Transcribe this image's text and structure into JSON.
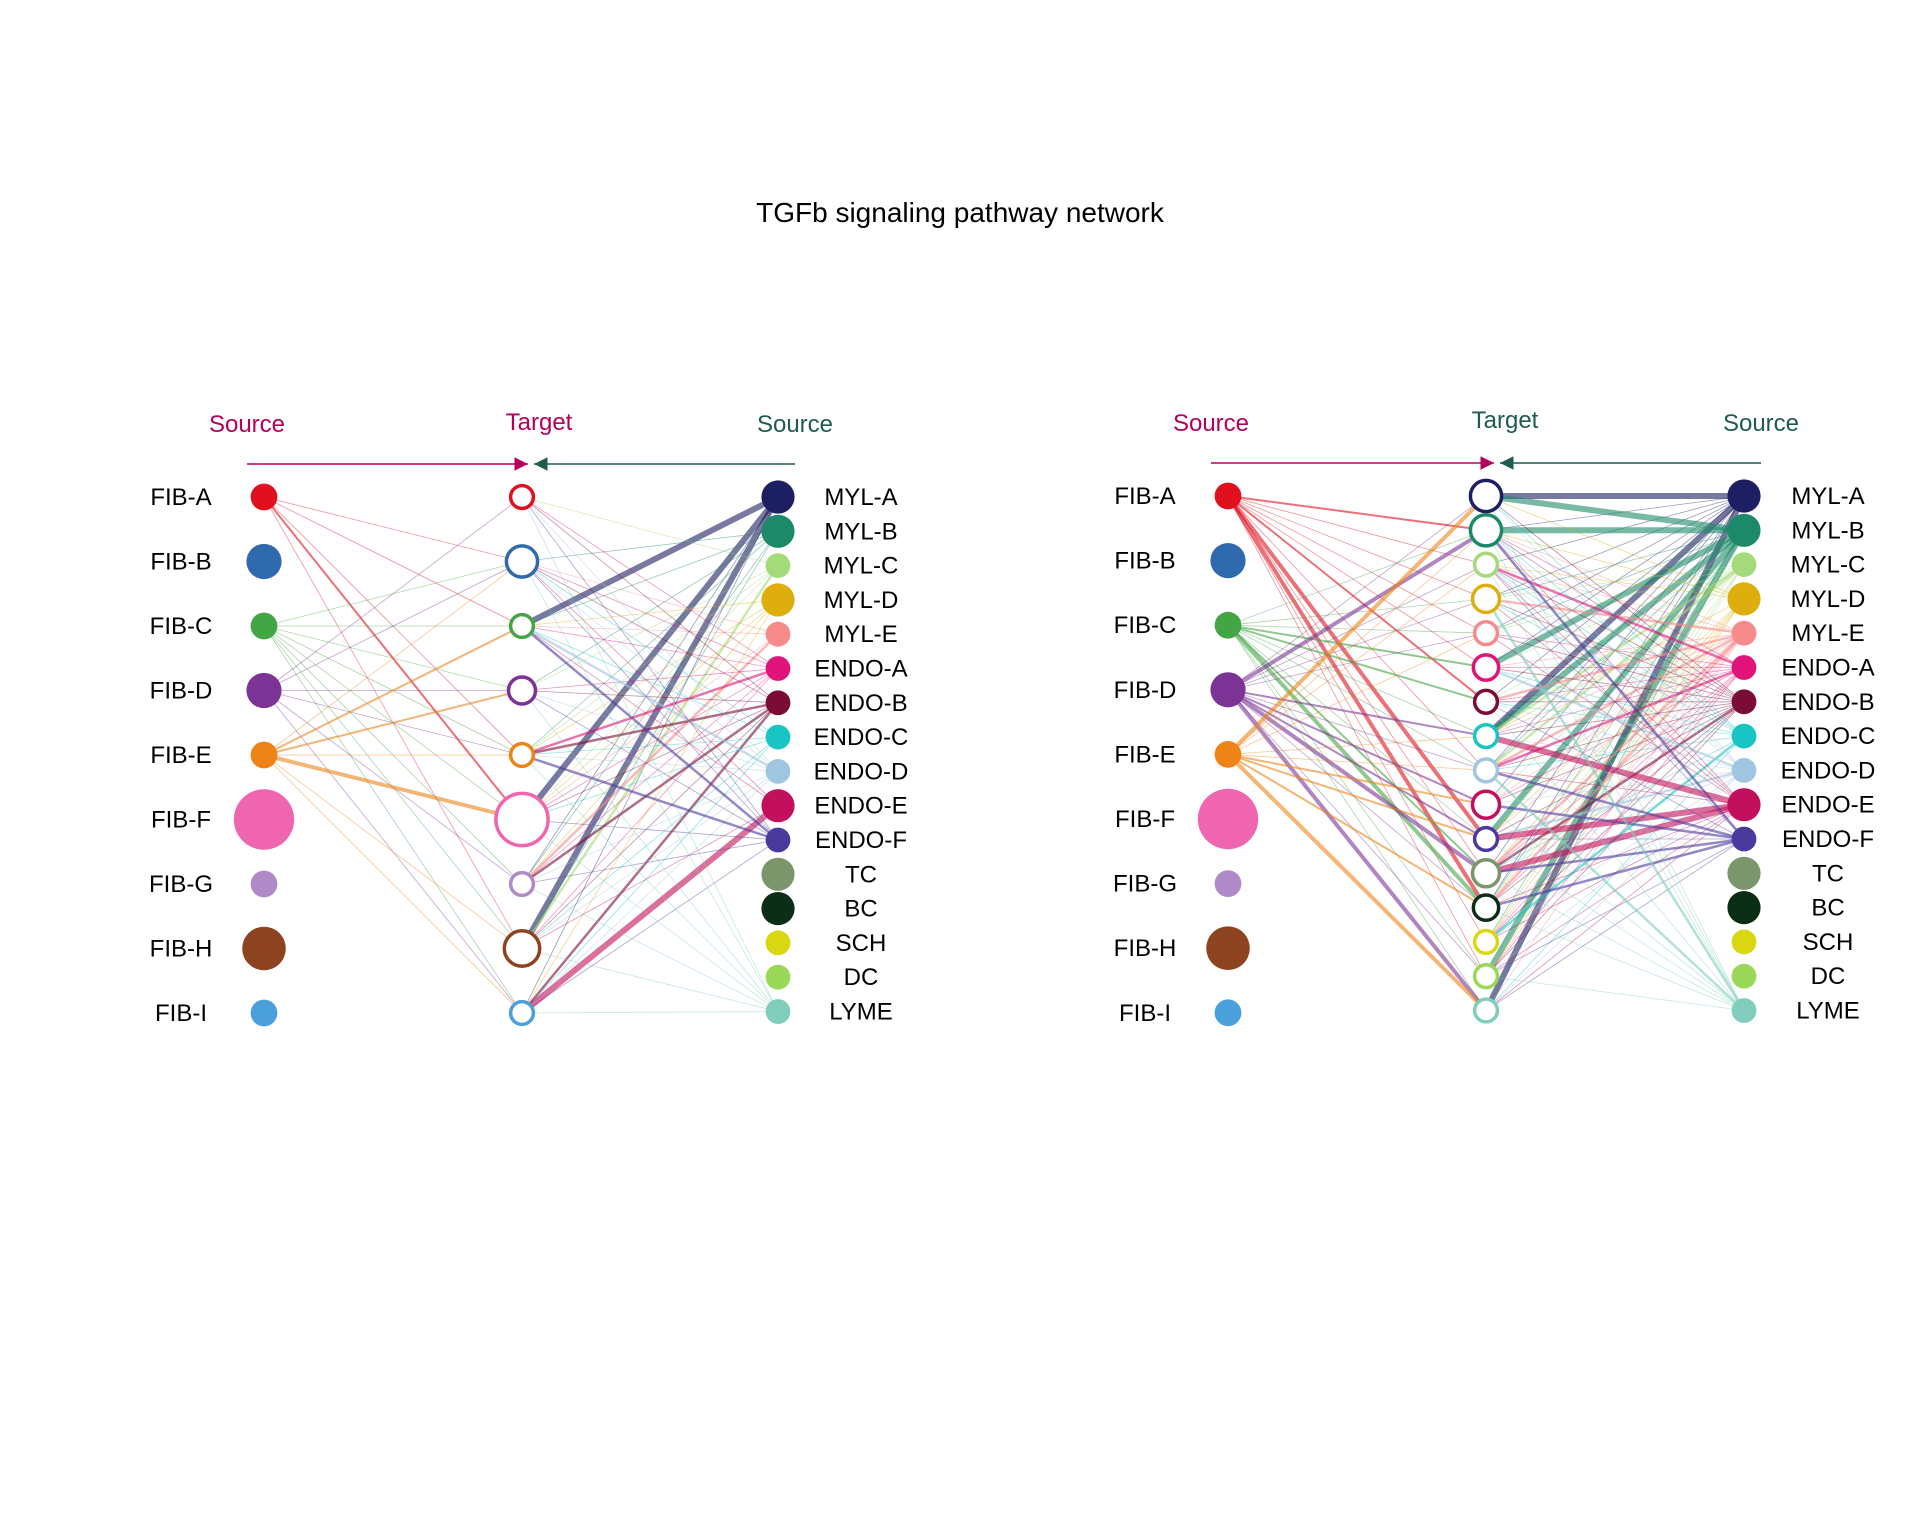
{
  "title": "TGFb signaling pathway network",
  "colors": {
    "source_left": "#B5005B",
    "source_right": "#1F5B4F",
    "target": "#B5005B"
  },
  "headers": {
    "source_left": "Source",
    "target": "Target",
    "source_right": "Source"
  },
  "source_left_label": "Source",
  "source_right_label": "Source",
  "target_label": "Target",
  "panels": [
    {
      "source_left_label": "Source",
      "target_label": "Target",
      "source_right_label": "Source",
      "left_sources": [
        {
          "name": "FIB-A",
          "color": "#E0101E",
          "size": 2
        },
        {
          "name": "FIB-B",
          "color": "#2F6AAF",
          "size": 3
        },
        {
          "name": "FIB-C",
          "color": "#44A544",
          "size": 2
        },
        {
          "name": "FIB-D",
          "color": "#7B3396",
          "size": 3
        },
        {
          "name": "FIB-E",
          "color": "#EE8418",
          "size": 2
        },
        {
          "name": "FIB-F",
          "color": "#F065B0",
          "size": 6
        },
        {
          "name": "FIB-G",
          "color": "#B08AC8",
          "size": 2
        },
        {
          "name": "FIB-H",
          "color": "#8E4320",
          "size": 4
        },
        {
          "name": "FIB-I",
          "color": "#4B9FDB",
          "size": 2
        }
      ],
      "targets": [
        {
          "name": "FIB-A",
          "color": "#E0101E",
          "size": 2
        },
        {
          "name": "FIB-B",
          "color": "#2F6AAF",
          "size": 3
        },
        {
          "name": "FIB-C",
          "color": "#44A544",
          "size": 2
        },
        {
          "name": "FIB-D",
          "color": "#7B3396",
          "size": 2.5
        },
        {
          "name": "FIB-E",
          "color": "#EE8418",
          "size": 2
        },
        {
          "name": "FIB-F",
          "color": "#F065B0",
          "size": 5.5
        },
        {
          "name": "FIB-G",
          "color": "#B08AC8",
          "size": 2
        },
        {
          "name": "FIB-H",
          "color": "#8E4320",
          "size": 3.5
        },
        {
          "name": "FIB-I",
          "color": "#4B9FDB",
          "size": 2
        }
      ],
      "right_sources": [
        {
          "name": "MYL-A",
          "color": "#1C1F62",
          "size": 3
        },
        {
          "name": "MYL-B",
          "color": "#1C8A68",
          "size": 3
        },
        {
          "name": "MYL-C",
          "color": "#A5DA7A",
          "size": 2
        },
        {
          "name": "MYL-D",
          "color": "#DEAE0E",
          "size": 3
        },
        {
          "name": "MYL-E",
          "color": "#F78A8A",
          "size": 2
        },
        {
          "name": "ENDO-A",
          "color": "#E0137A",
          "size": 2
        },
        {
          "name": "ENDO-B",
          "color": "#7A0C35",
          "size": 2
        },
        {
          "name": "ENDO-C",
          "color": "#19C4C4",
          "size": 2
        },
        {
          "name": "ENDO-D",
          "color": "#9FC5E0",
          "size": 2
        },
        {
          "name": "ENDO-E",
          "color": "#C3105C",
          "size": 3
        },
        {
          "name": "ENDO-F",
          "color": "#4B3A9E",
          "size": 2
        },
        {
          "name": "TC",
          "color": "#7A966A",
          "size": 3
        },
        {
          "name": "BC",
          "color": "#0C2E16",
          "size": 3
        },
        {
          "name": "SCH",
          "color": "#D8D712",
          "size": 2
        },
        {
          "name": "DC",
          "color": "#9AD858",
          "size": 2
        },
        {
          "name": "LYME",
          "color": "#7FCDBA",
          "size": 2
        }
      ]
    },
    {
      "source_left_label": "Source",
      "target_label": "Target",
      "source_right_label": "Source",
      "left_sources": [
        {
          "name": "FIB-A",
          "color": "#E0101E",
          "size": 2
        },
        {
          "name": "FIB-B",
          "color": "#2F6AAF",
          "size": 3
        },
        {
          "name": "FIB-C",
          "color": "#44A544",
          "size": 2
        },
        {
          "name": "FIB-D",
          "color": "#7B3396",
          "size": 3
        },
        {
          "name": "FIB-E",
          "color": "#EE8418",
          "size": 2
        },
        {
          "name": "FIB-F",
          "color": "#F065B0",
          "size": 6
        },
        {
          "name": "FIB-G",
          "color": "#B08AC8",
          "size": 2
        },
        {
          "name": "FIB-H",
          "color": "#8E4320",
          "size": 4
        },
        {
          "name": "FIB-I",
          "color": "#4B9FDB",
          "size": 2
        }
      ],
      "targets": [
        {
          "name": "MYL-A",
          "color": "#1C1F62",
          "size": 3
        },
        {
          "name": "MYL-B",
          "color": "#1C8A68",
          "size": 3
        },
        {
          "name": "MYL-C",
          "color": "#A5DA7A",
          "size": 2
        },
        {
          "name": "MYL-D",
          "color": "#DEAE0E",
          "size": 2.5
        },
        {
          "name": "MYL-E",
          "color": "#F78A8A",
          "size": 2
        },
        {
          "name": "ENDO-A",
          "color": "#E0137A",
          "size": 2.3
        },
        {
          "name": "ENDO-B",
          "color": "#7A0C35",
          "size": 2
        },
        {
          "name": "ENDO-C",
          "color": "#19C4C4",
          "size": 2
        },
        {
          "name": "ENDO-D",
          "color": "#9FC5E0",
          "size": 2
        },
        {
          "name": "ENDO-E",
          "color": "#C3105C",
          "size": 2.5
        },
        {
          "name": "ENDO-F",
          "color": "#4B3A9E",
          "size": 2
        },
        {
          "name": "TC",
          "color": "#7A966A",
          "size": 2.5
        },
        {
          "name": "BC",
          "color": "#0C2E16",
          "size": 2.3
        },
        {
          "name": "SCH",
          "color": "#D8D712",
          "size": 2
        },
        {
          "name": "DC",
          "color": "#9AD858",
          "size": 2
        },
        {
          "name": "LYME",
          "color": "#7FCDBA",
          "size": 2
        }
      ],
      "right_sources": [
        {
          "name": "MYL-A",
          "color": "#1C1F62",
          "size": 3
        },
        {
          "name": "MYL-B",
          "color": "#1C8A68",
          "size": 3
        },
        {
          "name": "MYL-C",
          "color": "#A5DA7A",
          "size": 2
        },
        {
          "name": "MYL-D",
          "color": "#DEAE0E",
          "size": 3
        },
        {
          "name": "MYL-E",
          "color": "#F78A8A",
          "size": 2
        },
        {
          "name": "ENDO-A",
          "color": "#E0137A",
          "size": 2
        },
        {
          "name": "ENDO-B",
          "color": "#7A0C35",
          "size": 2
        },
        {
          "name": "ENDO-C",
          "color": "#19C4C4",
          "size": 2
        },
        {
          "name": "ENDO-D",
          "color": "#9FC5E0",
          "size": 2
        },
        {
          "name": "ENDO-E",
          "color": "#C3105C",
          "size": 3
        },
        {
          "name": "ENDO-F",
          "color": "#4B3A9E",
          "size": 2
        },
        {
          "name": "TC",
          "color": "#7A966A",
          "size": 3
        },
        {
          "name": "BC",
          "color": "#0C2E16",
          "size": 3
        },
        {
          "name": "SCH",
          "color": "#D8D712",
          "size": 2
        },
        {
          "name": "DC",
          "color": "#9AD858",
          "size": 2
        },
        {
          "name": "LYME",
          "color": "#7FCDBA",
          "size": 2
        }
      ]
    }
  ]
}
